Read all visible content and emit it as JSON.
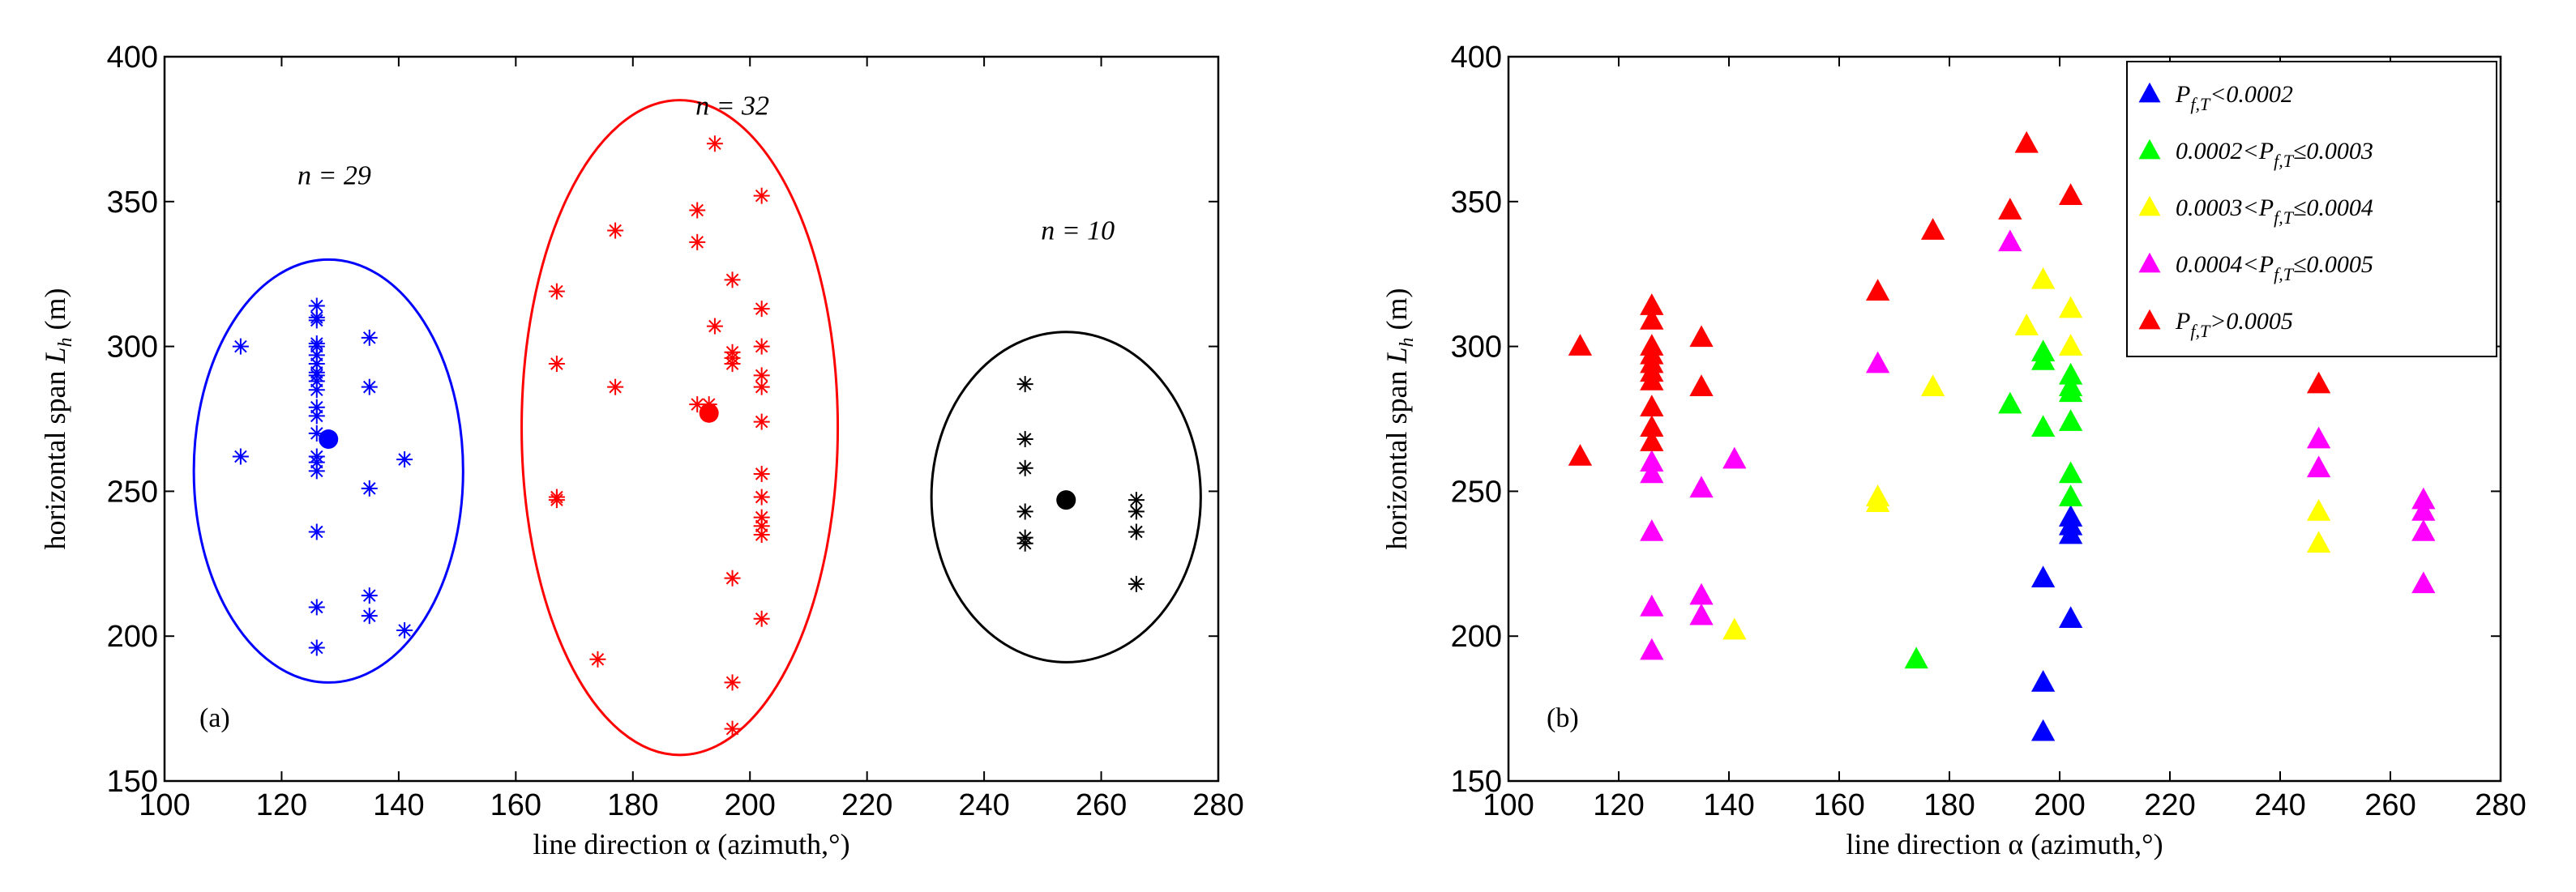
{
  "chart_data": [
    {
      "type": "scatter",
      "panel_label": "(a)",
      "xlabel": "line direction α (azimuth,°)",
      "ylabel": "horizontal span L_h (m)",
      "xlim": [
        100,
        280
      ],
      "ylim": [
        150,
        400
      ],
      "xticks": [
        100,
        120,
        140,
        160,
        180,
        200,
        220,
        240,
        260,
        280
      ],
      "yticks": [
        150,
        200,
        250,
        300,
        350,
        400
      ],
      "grid": false,
      "clusters": [
        {
          "name": "cluster-1",
          "color": "#0000ff",
          "annotation": "n = 29",
          "centroid": [
            128,
            268
          ],
          "ellipse": {
            "cx": 128,
            "cy": 257,
            "rx": 23,
            "ry": 73
          },
          "points": [
            [
              113,
              300
            ],
            [
              113,
              262
            ],
            [
              126,
              314
            ],
            [
              126,
              309
            ],
            [
              126,
              297
            ],
            [
              126,
              294
            ],
            [
              126,
              291
            ],
            [
              126,
              288
            ],
            [
              126,
              279
            ],
            [
              126,
              270
            ],
            [
              126,
              260
            ],
            [
              126,
              257
            ],
            [
              126,
              236
            ],
            [
              126,
              210
            ],
            [
              126,
              196
            ],
            [
              126,
              310
            ],
            [
              126,
              300
            ],
            [
              126,
              290
            ],
            [
              126,
              262
            ],
            [
              135,
              303
            ],
            [
              135,
              286
            ],
            [
              135,
              251
            ],
            [
              135,
              214
            ],
            [
              135,
              207
            ],
            [
              141,
              261
            ],
            [
              141,
              202
            ],
            [
              126,
              301
            ],
            [
              126,
              285
            ],
            [
              126,
              276
            ]
          ]
        },
        {
          "name": "cluster-2",
          "color": "#ff0000",
          "annotation": "n = 32",
          "centroid": [
            193,
            277
          ],
          "ellipse": {
            "cx": 188,
            "cy": 272,
            "rx": 27,
            "ry": 113
          },
          "points": [
            [
              167,
              319
            ],
            [
              167,
              294
            ],
            [
              167,
              248
            ],
            [
              167,
              247
            ],
            [
              174,
              192
            ],
            [
              177,
              340
            ],
            [
              177,
              286
            ],
            [
              191,
              347
            ],
            [
              191,
              336
            ],
            [
              194,
              370
            ],
            [
              194,
              307
            ],
            [
              197,
              323
            ],
            [
              197,
              298
            ],
            [
              197,
              296
            ],
            [
              197,
              220
            ],
            [
              197,
              184
            ],
            [
              197,
              168
            ],
            [
              202,
              352
            ],
            [
              202,
              313
            ],
            [
              202,
              300
            ],
            [
              202,
              290
            ],
            [
              202,
              286
            ],
            [
              202,
              274
            ],
            [
              202,
              256
            ],
            [
              202,
              248
            ],
            [
              202,
              241
            ],
            [
              202,
              238
            ],
            [
              202,
              235
            ],
            [
              202,
              206
            ],
            [
              193,
              280
            ],
            [
              191,
              280
            ],
            [
              197,
              294
            ]
          ]
        },
        {
          "name": "cluster-3",
          "color": "#000000",
          "annotation": "n = 10",
          "centroid": [
            254,
            247
          ],
          "ellipse": {
            "cx": 254,
            "cy": 248,
            "rx": 23,
            "ry": 57
          },
          "points": [
            [
              247,
              287
            ],
            [
              247,
              268
            ],
            [
              247,
              258
            ],
            [
              247,
              243
            ],
            [
              247,
              234
            ],
            [
              247,
              232
            ],
            [
              266,
              247
            ],
            [
              266,
              243
            ],
            [
              266,
              236
            ],
            [
              266,
              218
            ]
          ]
        }
      ]
    },
    {
      "type": "scatter",
      "panel_label": "(b)",
      "xlabel": "line direction α (azimuth,°)",
      "ylabel": "horizontal span L_h (m)",
      "xlim": [
        100,
        280
      ],
      "ylim": [
        150,
        400
      ],
      "xticks": [
        100,
        120,
        140,
        160,
        180,
        200,
        220,
        240,
        260,
        280
      ],
      "yticks": [
        150,
        200,
        250,
        300,
        350,
        400
      ],
      "grid": false,
      "legend_position": "top-right",
      "series": [
        {
          "name": "P_{f,T}<0.0002",
          "legend_parts": [
            "P",
            "f,T",
            "<0.0002"
          ],
          "color": "#0000ff",
          "points": [
            [
              197,
              220
            ],
            [
              197,
              184
            ],
            [
              197,
              167
            ],
            [
              202,
              241
            ],
            [
              202,
              238
            ],
            [
              202,
              235
            ],
            [
              202,
              206
            ]
          ]
        },
        {
          "name": "0.0002<P_{f,T}≤0.0003",
          "legend_parts": [
            "0.0002<P",
            "f,T",
            "≤0.0003"
          ],
          "color": "#00ff00",
          "points": [
            [
              174,
              192
            ],
            [
              191,
              280
            ],
            [
              197,
              298
            ],
            [
              197,
              295
            ],
            [
              197,
              272
            ],
            [
              202,
              290
            ],
            [
              202,
              286
            ],
            [
              202,
              284
            ],
            [
              202,
              274
            ],
            [
              202,
              256
            ],
            [
              202,
              248
            ]
          ]
        },
        {
          "name": "0.0003<P_{f,T}≤0.0004",
          "legend_parts": [
            "0.0003<P",
            "f,T",
            "≤0.0004"
          ],
          "color": "#ffff00",
          "points": [
            [
              141,
              202
            ],
            [
              167,
              248
            ],
            [
              167,
              246
            ],
            [
              177,
              286
            ],
            [
              194,
              307
            ],
            [
              197,
              323
            ],
            [
              202,
              313
            ],
            [
              202,
              300
            ],
            [
              247,
              243
            ],
            [
              247,
              232
            ]
          ]
        },
        {
          "name": "0.0004<P_{f,T}≤0.0005",
          "legend_parts": [
            "0.0004<P",
            "f,T",
            "≤0.0005"
          ],
          "color": "#ff00ff",
          "points": [
            [
              126,
              260
            ],
            [
              126,
              256
            ],
            [
              126,
              236
            ],
            [
              126,
              210
            ],
            [
              126,
              195
            ],
            [
              135,
              251
            ],
            [
              135,
              214
            ],
            [
              135,
              207
            ],
            [
              141,
              261
            ],
            [
              167,
              294
            ],
            [
              191,
              336
            ],
            [
              247,
              268
            ],
            [
              247,
              258
            ],
            [
              266,
              247
            ],
            [
              266,
              243
            ],
            [
              266,
              236
            ],
            [
              266,
              218
            ]
          ]
        },
        {
          "name": "P_{f,T}>0.0005",
          "legend_parts": [
            "P",
            "f,T",
            ">0.0005"
          ],
          "color": "#ff0000",
          "points": [
            [
              113,
              300
            ],
            [
              113,
              262
            ],
            [
              126,
              314
            ],
            [
              126,
              309
            ],
            [
              126,
              300
            ],
            [
              126,
              297
            ],
            [
              126,
              294
            ],
            [
              126,
              291
            ],
            [
              126,
              288
            ],
            [
              126,
              279
            ],
            [
              126,
              272
            ],
            [
              126,
              267
            ],
            [
              135,
              303
            ],
            [
              135,
              286
            ],
            [
              167,
              319
            ],
            [
              177,
              340
            ],
            [
              191,
              347
            ],
            [
              194,
              370
            ],
            [
              202,
              352
            ],
            [
              247,
              287
            ]
          ]
        }
      ]
    }
  ]
}
